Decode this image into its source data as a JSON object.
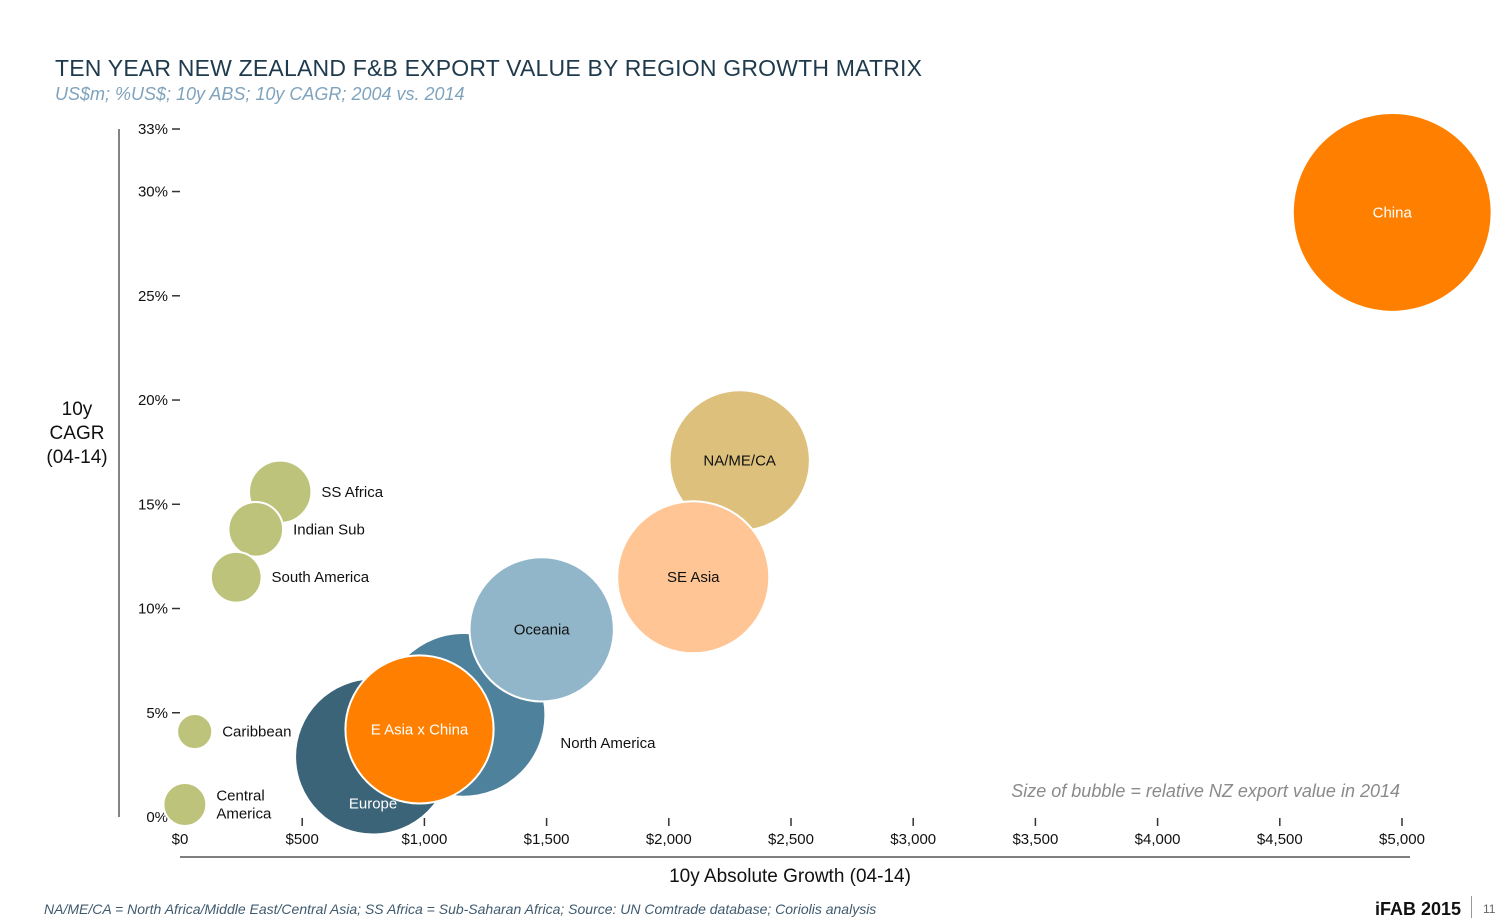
{
  "header": {
    "title": "TEN YEAR NEW ZEALAND F&B EXPORT VALUE BY REGION GROWTH MATRIX",
    "subtitle": "US$m; %US$; 10y ABS; 10y CAGR; 2004 vs. 2014"
  },
  "footer": {
    "footnote": "NA/ME/CA = North Africa/Middle East/Central Asia;  SS Africa = Sub-Saharan Africa;  Source: UN Comtrade database; Coriolis analysis",
    "brand": "iFAB 2015",
    "page_number": "11"
  },
  "chart_data": {
    "type": "bubble",
    "title": "TEN YEAR NEW ZEALAND F&B EXPORT VALUE BY REGION GROWTH MATRIX",
    "subtitle": "US$m; %US$; 10y ABS; 10y CAGR; 2004 vs. 2014",
    "xlabel": "10y Absolute Growth (04-14)",
    "ylabel": "10y\nCAGR\n(04-14)",
    "xlim": [
      0,
      5000
    ],
    "ylim": [
      0,
      33
    ],
    "x_ticks": [
      0,
      500,
      1000,
      1500,
      2000,
      2500,
      3000,
      3500,
      4000,
      4500,
      5000
    ],
    "x_tick_labels": [
      "$0",
      "$500",
      "$1,000",
      "$1,500",
      "$2,000",
      "$2,500",
      "$3,000",
      "$3,500",
      "$4,000",
      "$4,500",
      "$5,000"
    ],
    "y_ticks": [
      0,
      5,
      10,
      15,
      20,
      25,
      30,
      33
    ],
    "y_tick_labels": [
      "0%",
      "5%",
      "10%",
      "15%",
      "20%",
      "25%",
      "30%",
      "33%"
    ],
    "size_note": "Size of bubble = relative NZ export value in 2014",
    "colors": {
      "green": "#bdc37a",
      "dark_blue": "#3b6479",
      "mid_blue": "#4e819c",
      "light_blue": "#91b6c9",
      "orange": "#ff8000",
      "tan": "#dcc07c",
      "peach": "#ffc594"
    },
    "points": [
      {
        "label": "Europe",
        "x": 790,
        "y": 2.9,
        "radius": 40,
        "color": "dark_blue",
        "label_pos": "below-inside",
        "label_color": "#ffffff"
      },
      {
        "label": "North America",
        "x": 1160,
        "y": 4.9,
        "radius": 42,
        "color": "mid_blue",
        "label_pos": "right",
        "label_color": "#111111"
      },
      {
        "label": "E Asia x China",
        "x": 980,
        "y": 4.2,
        "radius": 38,
        "color": "orange",
        "label_pos": "center",
        "label_color": "#ffffff"
      },
      {
        "label": "Oceania",
        "x": 1480,
        "y": 9.0,
        "radius": 37,
        "color": "light_blue",
        "label_pos": "center",
        "label_color": "#111111"
      },
      {
        "label": "NA/ME/CA",
        "x": 2290,
        "y": 17.1,
        "radius": 36,
        "color": "tan",
        "label_pos": "center",
        "label_color": "#111111"
      },
      {
        "label": "SE Asia",
        "x": 2100,
        "y": 11.5,
        "radius": 39,
        "color": "peach",
        "label_pos": "center",
        "label_color": "#111111"
      },
      {
        "label": "China",
        "x": 4960,
        "y": 29.0,
        "radius": 51,
        "color": "orange",
        "label_pos": "center",
        "label_color": "#ffffff"
      },
      {
        "label": "SS Africa",
        "x": 410,
        "y": 15.6,
        "radius": 16,
        "color": "green",
        "label_pos": "right",
        "label_color": "#111111"
      },
      {
        "label": "Indian Sub",
        "x": 310,
        "y": 13.8,
        "radius": 14,
        "color": "green",
        "label_pos": "right",
        "label_color": "#111111"
      },
      {
        "label": "South America",
        "x": 230,
        "y": 11.5,
        "radius": 13,
        "color": "green",
        "label_pos": "right",
        "label_color": "#111111"
      },
      {
        "label": "Caribbean",
        "x": 60,
        "y": 4.1,
        "radius": 9,
        "color": "green",
        "label_pos": "right",
        "label_color": "#111111"
      },
      {
        "label": "Central\nAmerica",
        "x": 20,
        "y": 0.6,
        "radius": 11,
        "color": "green",
        "label_pos": "right",
        "label_color": "#111111"
      }
    ]
  }
}
